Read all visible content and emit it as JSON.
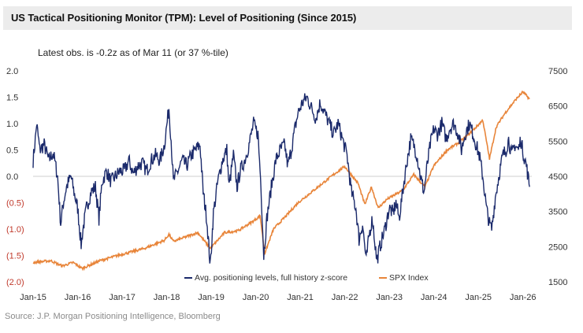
{
  "header": {
    "title": "US Tactical Positioning Monitor (TPM): Level of Positioning (Since 2015)",
    "annotation": "Latest obs. is -0.2z as of Mar 11 (or 37 %-tile)",
    "source": "Source: J.P. Morgan Positioning Intelligence, Bloomberg"
  },
  "colors": {
    "positioning": "#1b2a6b",
    "spx": "#e8853a",
    "zero_line": "#cfcfcf",
    "negative_tick": "#c0392b"
  },
  "chart_data": {
    "type": "line",
    "x_tick_labels": [
      "Jan-15",
      "Jan-16",
      "Jan-17",
      "Jan-18",
      "Jan-19",
      "Jan-20",
      "Jan-21",
      "Jan-22",
      "Jan-23",
      "Jan-24",
      "Jan-25",
      "Jan-26"
    ],
    "x_range": [
      2015.0,
      2026.2
    ],
    "left_axis": {
      "ylim": [
        -2.0,
        2.0
      ],
      "tick_values": [
        2.0,
        1.5,
        1.0,
        0.5,
        0.0,
        -0.5,
        -1.0,
        -1.5,
        -2.0
      ],
      "tick_labels": [
        "2.0",
        "1.5",
        "1.0",
        "0.5",
        "0.0",
        "(0.5)",
        "(1.0)",
        "(1.5)",
        "(2.0)"
      ]
    },
    "right_axis": {
      "ylim": [
        1500,
        7500
      ],
      "tick_values": [
        7500,
        6500,
        5500,
        4500,
        3500,
        2500,
        1500
      ],
      "tick_labels": [
        "7500",
        "6500",
        "5500",
        "4500",
        "3500",
        "2500",
        "1500"
      ]
    },
    "series": [
      {
        "name": "Avg. positioning levels, full history z-score",
        "axis": "left",
        "points": [
          [
            2015.0,
            0.3
          ],
          [
            2015.05,
            0.7
          ],
          [
            2015.08,
            1.0
          ],
          [
            2015.15,
            0.5
          ],
          [
            2015.25,
            0.6
          ],
          [
            2015.35,
            0.3
          ],
          [
            2015.45,
            0.45
          ],
          [
            2015.55,
            0.0
          ],
          [
            2015.62,
            -0.9
          ],
          [
            2015.68,
            -0.5
          ],
          [
            2015.75,
            -0.2
          ],
          [
            2015.85,
            0.0
          ],
          [
            2015.92,
            -0.3
          ],
          [
            2016.0,
            -0.6
          ],
          [
            2016.08,
            -1.3
          ],
          [
            2016.12,
            -1.0
          ],
          [
            2016.2,
            -0.6
          ],
          [
            2016.3,
            -0.3
          ],
          [
            2016.4,
            -0.2
          ],
          [
            2016.48,
            -0.8
          ],
          [
            2016.55,
            -0.1
          ],
          [
            2016.65,
            0.1
          ],
          [
            2016.75,
            -0.1
          ],
          [
            2016.85,
            0.0
          ],
          [
            2016.95,
            0.1
          ],
          [
            2017.05,
            0.1
          ],
          [
            2017.15,
            0.3
          ],
          [
            2017.25,
            0.05
          ],
          [
            2017.35,
            0.2
          ],
          [
            2017.45,
            0.25
          ],
          [
            2017.55,
            0.1
          ],
          [
            2017.65,
            0.3
          ],
          [
            2017.75,
            0.4
          ],
          [
            2017.85,
            0.3
          ],
          [
            2017.95,
            0.6
          ],
          [
            2018.05,
            1.3
          ],
          [
            2018.1,
            0.7
          ],
          [
            2018.15,
            -0.1
          ],
          [
            2018.25,
            0.1
          ],
          [
            2018.35,
            0.3
          ],
          [
            2018.45,
            0.2
          ],
          [
            2018.55,
            0.4
          ],
          [
            2018.65,
            0.5
          ],
          [
            2018.75,
            0.6
          ],
          [
            2018.82,
            -0.3
          ],
          [
            2018.9,
            -0.8
          ],
          [
            2018.98,
            -1.7
          ],
          [
            2019.05,
            -0.7
          ],
          [
            2019.15,
            -0.1
          ],
          [
            2019.25,
            0.3
          ],
          [
            2019.35,
            0.5
          ],
          [
            2019.4,
            -0.2
          ],
          [
            2019.5,
            0.4
          ],
          [
            2019.58,
            -0.2
          ],
          [
            2019.65,
            0.1
          ],
          [
            2019.75,
            0.3
          ],
          [
            2019.85,
            0.6
          ],
          [
            2019.95,
            1.0
          ],
          [
            2020.05,
            0.8
          ],
          [
            2020.12,
            -0.2
          ],
          [
            2020.18,
            -1.5
          ],
          [
            2020.25,
            -0.8
          ],
          [
            2020.35,
            -0.2
          ],
          [
            2020.45,
            0.3
          ],
          [
            2020.55,
            0.5
          ],
          [
            2020.65,
            0.6
          ],
          [
            2020.72,
            0.2
          ],
          [
            2020.8,
            0.5
          ],
          [
            2020.88,
            0.9
          ],
          [
            2020.95,
            1.2
          ],
          [
            2021.05,
            1.4
          ],
          [
            2021.15,
            1.5
          ],
          [
            2021.25,
            1.3
          ],
          [
            2021.35,
            1.1
          ],
          [
            2021.45,
            1.4
          ],
          [
            2021.55,
            1.2
          ],
          [
            2021.65,
            1.0
          ],
          [
            2021.75,
            0.8
          ],
          [
            2021.85,
            1.0
          ],
          [
            2021.95,
            0.7
          ],
          [
            2022.05,
            0.4
          ],
          [
            2022.15,
            -0.3
          ],
          [
            2022.25,
            -0.6
          ],
          [
            2022.32,
            -1.2
          ],
          [
            2022.4,
            -0.9
          ],
          [
            2022.48,
            -1.6
          ],
          [
            2022.55,
            -1.1
          ],
          [
            2022.62,
            -0.8
          ],
          [
            2022.72,
            -1.6
          ],
          [
            2022.8,
            -1.3
          ],
          [
            2022.9,
            -1.0
          ],
          [
            2023.0,
            -0.6
          ],
          [
            2023.08,
            -0.7
          ],
          [
            2023.15,
            -0.5
          ],
          [
            2023.22,
            -0.8
          ],
          [
            2023.3,
            -0.3
          ],
          [
            2023.38,
            0.2
          ],
          [
            2023.48,
            0.7
          ],
          [
            2023.55,
            0.6
          ],
          [
            2023.62,
            0.4
          ],
          [
            2023.7,
            0.0
          ],
          [
            2023.78,
            -0.3
          ],
          [
            2023.85,
            0.2
          ],
          [
            2023.92,
            0.6
          ],
          [
            2024.0,
            0.9
          ],
          [
            2024.08,
            0.8
          ],
          [
            2024.18,
            1.0
          ],
          [
            2024.28,
            0.7
          ],
          [
            2024.35,
            0.9
          ],
          [
            2024.45,
            1.0
          ],
          [
            2024.55,
            0.8
          ],
          [
            2024.62,
            0.5
          ],
          [
            2024.7,
            0.8
          ],
          [
            2024.8,
            1.0
          ],
          [
            2024.88,
            0.8
          ],
          [
            2024.95,
            0.6
          ],
          [
            2025.02,
            0.4
          ],
          [
            2025.1,
            0.0
          ],
          [
            2025.18,
            -0.6
          ],
          [
            2025.25,
            -0.9
          ],
          [
            2025.3,
            -1.0
          ],
          [
            2025.38,
            -0.4
          ],
          [
            2025.48,
            0.1
          ],
          [
            2025.55,
            0.4
          ],
          [
            2025.62,
            0.5
          ],
          [
            2025.68,
            0.7
          ],
          [
            2025.75,
            0.4
          ],
          [
            2025.82,
            0.6
          ],
          [
            2025.9,
            0.5
          ],
          [
            2025.95,
            0.7
          ],
          [
            2026.02,
            0.4
          ],
          [
            2026.08,
            0.2
          ],
          [
            2026.15,
            -0.2
          ]
        ]
      },
      {
        "name": "SPX Index",
        "axis": "right",
        "points": [
          [
            2015.0,
            2050
          ],
          [
            2015.4,
            2100
          ],
          [
            2015.65,
            1950
          ],
          [
            2015.9,
            2050
          ],
          [
            2016.1,
            1880
          ],
          [
            2016.5,
            2100
          ],
          [
            2016.9,
            2250
          ],
          [
            2017.5,
            2450
          ],
          [
            2017.95,
            2680
          ],
          [
            2018.05,
            2850
          ],
          [
            2018.15,
            2650
          ],
          [
            2018.7,
            2900
          ],
          [
            2018.98,
            2450
          ],
          [
            2019.3,
            2900
          ],
          [
            2019.6,
            2950
          ],
          [
            2019.95,
            3230
          ],
          [
            2020.1,
            3380
          ],
          [
            2020.2,
            2300
          ],
          [
            2020.4,
            3000
          ],
          [
            2020.7,
            3400
          ],
          [
            2020.95,
            3750
          ],
          [
            2021.4,
            4200
          ],
          [
            2021.8,
            4600
          ],
          [
            2022.0,
            4780
          ],
          [
            2022.3,
            4300
          ],
          [
            2022.45,
            3700
          ],
          [
            2022.6,
            4200
          ],
          [
            2022.75,
            3600
          ],
          [
            2022.95,
            3850
          ],
          [
            2023.3,
            4100
          ],
          [
            2023.55,
            4550
          ],
          [
            2023.8,
            4200
          ],
          [
            2024.0,
            4800
          ],
          [
            2024.3,
            5250
          ],
          [
            2024.55,
            5450
          ],
          [
            2024.7,
            5600
          ],
          [
            2024.95,
            5900
          ],
          [
            2025.1,
            6100
          ],
          [
            2025.25,
            5000
          ],
          [
            2025.4,
            5900
          ],
          [
            2025.6,
            6300
          ],
          [
            2025.85,
            6700
          ],
          [
            2026.0,
            6900
          ],
          [
            2026.15,
            6700
          ]
        ]
      }
    ],
    "legend": [
      {
        "label": "Avg. positioning levels, full history z-score",
        "color": "#1b2a6b"
      },
      {
        "label": "SPX Index",
        "color": "#e8853a"
      }
    ]
  }
}
